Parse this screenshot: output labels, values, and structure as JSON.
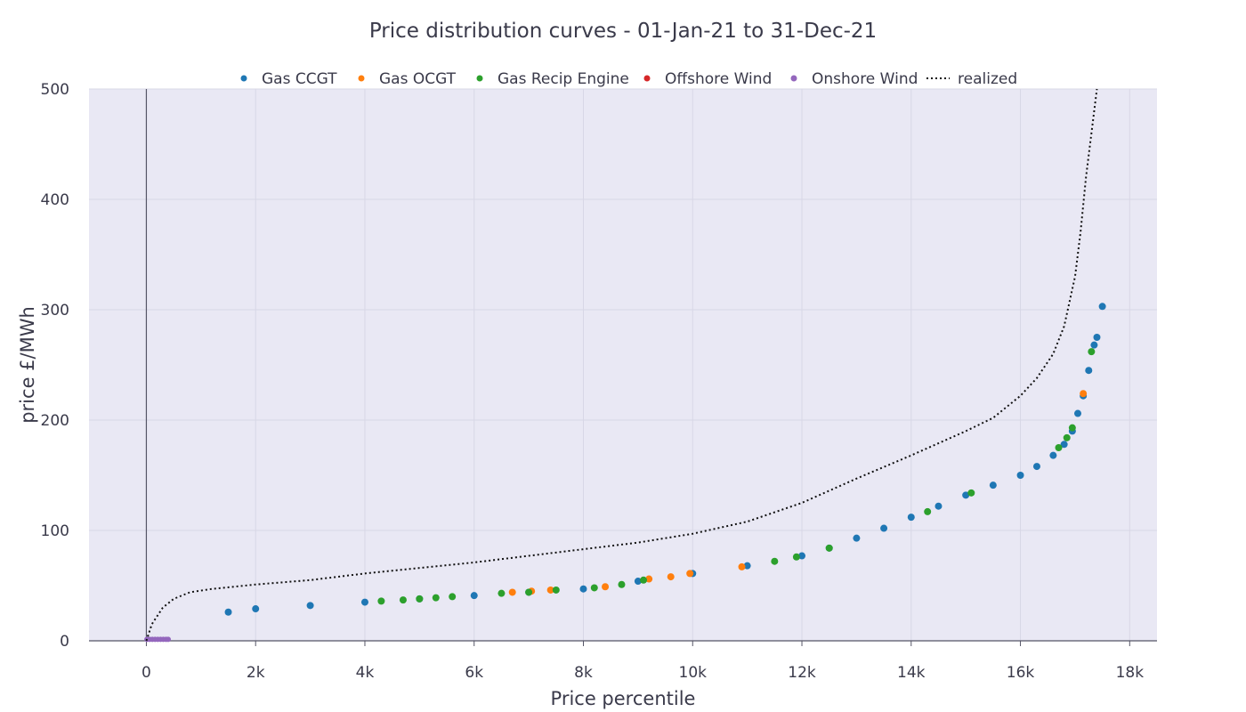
{
  "chart_data": {
    "type": "scatter",
    "title": "Price distribution curves - 01-Jan-21 to 31-Dec-21",
    "xlabel": "Price percentile",
    "ylabel": "price £/MWh",
    "xlim": [
      -1050,
      18500
    ],
    "ylim": [
      0,
      500
    ],
    "x_ticks": [
      0,
      2000,
      4000,
      6000,
      8000,
      10000,
      12000,
      14000,
      16000,
      18000
    ],
    "x_tick_labels": [
      "0",
      "2k",
      "4k",
      "6k",
      "8k",
      "10k",
      "12k",
      "14k",
      "16k",
      "18k"
    ],
    "y_ticks": [
      0,
      100,
      200,
      300,
      400,
      500
    ],
    "y_tick_labels": [
      "0",
      "100",
      "200",
      "300",
      "400",
      "500"
    ],
    "grid": true,
    "legend_position": "top",
    "legend": [
      {
        "name": "Gas CCGT",
        "color": "#1f77b4",
        "marker": "dot"
      },
      {
        "name": "Gas OCGT",
        "color": "#ff7f0e",
        "marker": "dot"
      },
      {
        "name": "Gas Recip Engine",
        "color": "#2ca02c",
        "marker": "dot"
      },
      {
        "name": "Offshore Wind",
        "color": "#d62728",
        "marker": "dot"
      },
      {
        "name": "Onshore Wind",
        "color": "#9467bd",
        "marker": "dot"
      },
      {
        "name": "realized",
        "color": "#111111",
        "marker": "dotted-line"
      }
    ],
    "series": [
      {
        "name": "Gas CCGT",
        "color": "#1f77b4",
        "x": [
          1500,
          2000,
          3000,
          4000,
          5000,
          6000,
          7000,
          8000,
          9000,
          10000,
          11000,
          12000,
          12500,
          13000,
          13500,
          14000,
          14500,
          15000,
          15500,
          16000,
          16300,
          16600,
          16800,
          16950,
          17050,
          17150,
          17250,
          17350,
          17400,
          17500
        ],
        "y": [
          26,
          29,
          32,
          35,
          38,
          41,
          44,
          47,
          54,
          61,
          68,
          77,
          84,
          93,
          102,
          112,
          122,
          132,
          141,
          150,
          158,
          168,
          178,
          190,
          206,
          222,
          245,
          268,
          275,
          303
        ]
      },
      {
        "name": "Gas OCGT",
        "color": "#ff7f0e",
        "x": [
          6700,
          7050,
          7400,
          8400,
          9200,
          9600,
          9950,
          10900,
          17150
        ],
        "y": [
          44,
          45,
          46,
          49,
          56,
          58,
          61,
          67,
          224
        ]
      },
      {
        "name": "Gas Recip Engine",
        "color": "#2ca02c",
        "x": [
          4300,
          4700,
          5000,
          5300,
          5600,
          6500,
          7000,
          7500,
          8200,
          8700,
          9100,
          11500,
          11900,
          12500,
          14300,
          15100,
          16700,
          16850,
          16950,
          17300
        ],
        "y": [
          36,
          37,
          38,
          39,
          40,
          43,
          44,
          46,
          48,
          51,
          55,
          72,
          76,
          84,
          117,
          134,
          175,
          184,
          193,
          262
        ]
      },
      {
        "name": "Offshore Wind",
        "color": "#d62728",
        "x": [],
        "y": []
      },
      {
        "name": "Onshore Wind",
        "color": "#9467bd",
        "x": [
          10,
          60,
          110,
          160,
          210,
          260,
          310,
          360,
          400
        ],
        "y": [
          0.5,
          0.5,
          0.5,
          0.5,
          0.5,
          0.5,
          0.5,
          0.5,
          0.5
        ]
      },
      {
        "name": "realized",
        "color": "#111111",
        "x": [
          0,
          100,
          300,
          500,
          800,
          1200,
          2000,
          3000,
          4000,
          5000,
          6000,
          7000,
          8000,
          9000,
          10000,
          11000,
          12000,
          13000,
          14000,
          15000,
          15500,
          16000,
          16300,
          16600,
          16800,
          17000,
          17100,
          17200,
          17250,
          17300,
          17350,
          17400
        ],
        "y": [
          0,
          15,
          30,
          38,
          44,
          47,
          51,
          55,
          61,
          66,
          71,
          77,
          83,
          89,
          97,
          108,
          125,
          147,
          168,
          190,
          202,
          222,
          238,
          260,
          285,
          330,
          370,
          420,
          440,
          460,
          480,
          500
        ]
      }
    ]
  }
}
